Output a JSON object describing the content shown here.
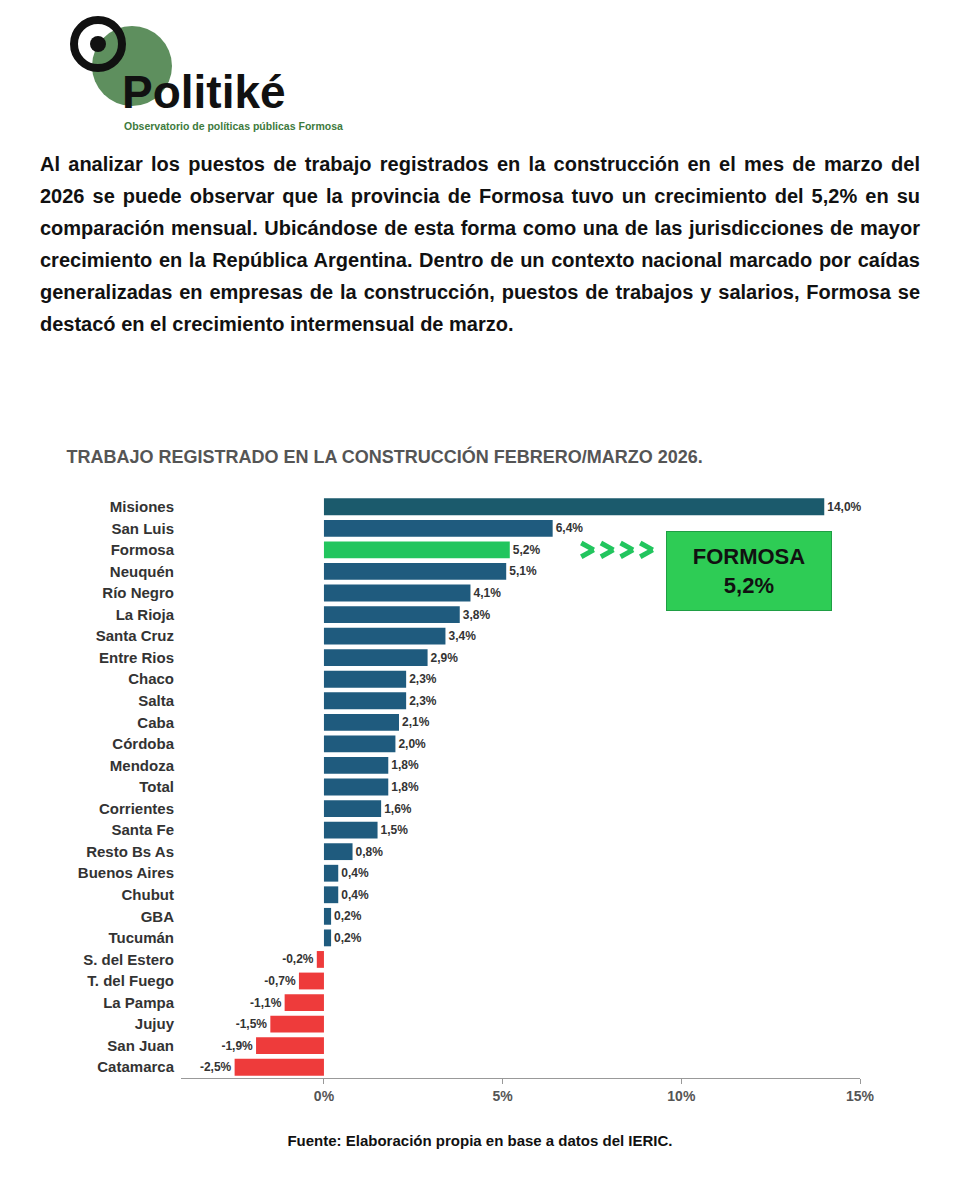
{
  "header": {
    "logo_name": "Politiké",
    "logo_subtitle": "Observatorio de políticas públicas Formosa",
    "text": "Al analizar los puestos de trabajo registrados en la construcción en el mes de marzo del 2026 se puede observar que la provincia de Formosa tuvo un crecimiento del 5,2% en su comparación mensual. Ubicándose de esta forma como una de las jurisdicciones de mayor crecimiento en la República Argentina. Dentro de un contexto nacional marcado por caídas generalizadas en empresas de la construcción, puestos de trabajos y salarios, Formosa se destacó en el crecimiento intermensual de marzo."
  },
  "chart_data": {
    "type": "bar",
    "orientation": "horizontal",
    "title": "TRABAJO REGISTRADO EN LA CONSTRUCCIÓN FEBRERO/MARZO 2026.",
    "categories": [
      "Misiones",
      "San Luis",
      "Formosa",
      "Neuquén",
      "Río Negro",
      "La Rioja",
      "Santa Cruz",
      "Entre Rios",
      "Chaco",
      "Salta",
      "Caba",
      "Córdoba",
      "Mendoza",
      "Total",
      "Corrientes",
      "Santa Fe",
      "Resto Bs As",
      "Buenos Aires",
      "Chubut",
      "GBA",
      "Tucumán",
      "S. del Estero",
      "T. del Fuego",
      "La Pampa",
      "Jujuy",
      "San Juan",
      "Catamarca"
    ],
    "values": [
      14.0,
      6.4,
      5.2,
      5.1,
      4.1,
      3.8,
      3.4,
      2.9,
      2.3,
      2.3,
      2.1,
      2.0,
      1.8,
      1.8,
      1.6,
      1.5,
      0.8,
      0.4,
      0.4,
      0.2,
      0.2,
      -0.2,
      -0.7,
      -1.1,
      -1.5,
      -1.9,
      -2.5
    ],
    "value_labels": [
      "14,0%",
      "6,4%",
      "5,2%",
      "5,1%",
      "4,1%",
      "3,8%",
      "3,4%",
      "2,9%",
      "2,3%",
      "2,3%",
      "2,1%",
      "2,0%",
      "1,8%",
      "1,8%",
      "1,6%",
      "1,5%",
      "0,8%",
      "0,4%",
      "0,4%",
      "0,2%",
      "0,2%",
      "-0,2%",
      "-0,7%",
      "-1,1%",
      "-1,5%",
      "-1,9%",
      "-2,5%"
    ],
    "colors": [
      "#1b5a6c",
      "#1f5b7e",
      "#22c55e",
      "#1f5b7e",
      "#1f5b7e",
      "#1f5b7e",
      "#1f5b7e",
      "#1f5b7e",
      "#1f5b7e",
      "#1f5b7e",
      "#1f5b7e",
      "#1f5b7e",
      "#1f5b7e",
      "#1f5b7e",
      "#1f5b7e",
      "#1f5b7e",
      "#1f5b7e",
      "#1f5b7e",
      "#1f5b7e",
      "#1f5b7e",
      "#1f5b7e",
      "#ee3b3b",
      "#ee3b3b",
      "#ee3b3b",
      "#ee3b3b",
      "#ee3b3b",
      "#ee3b3b"
    ],
    "xlim": [
      -4,
      15
    ],
    "xticks": [
      {
        "value": 0,
        "label": "0%"
      },
      {
        "value": 5,
        "label": "5%"
      },
      {
        "value": 10,
        "label": "10%"
      },
      {
        "value": 15,
        "label": "15%"
      }
    ],
    "grid": false,
    "data_labels": true,
    "annotations": [
      {
        "category": "Formosa",
        "text": [
          "FORMOSA",
          "5,2%"
        ]
      }
    ]
  },
  "source": "Fuente: Elaboración propia en base a datos del IERIC."
}
